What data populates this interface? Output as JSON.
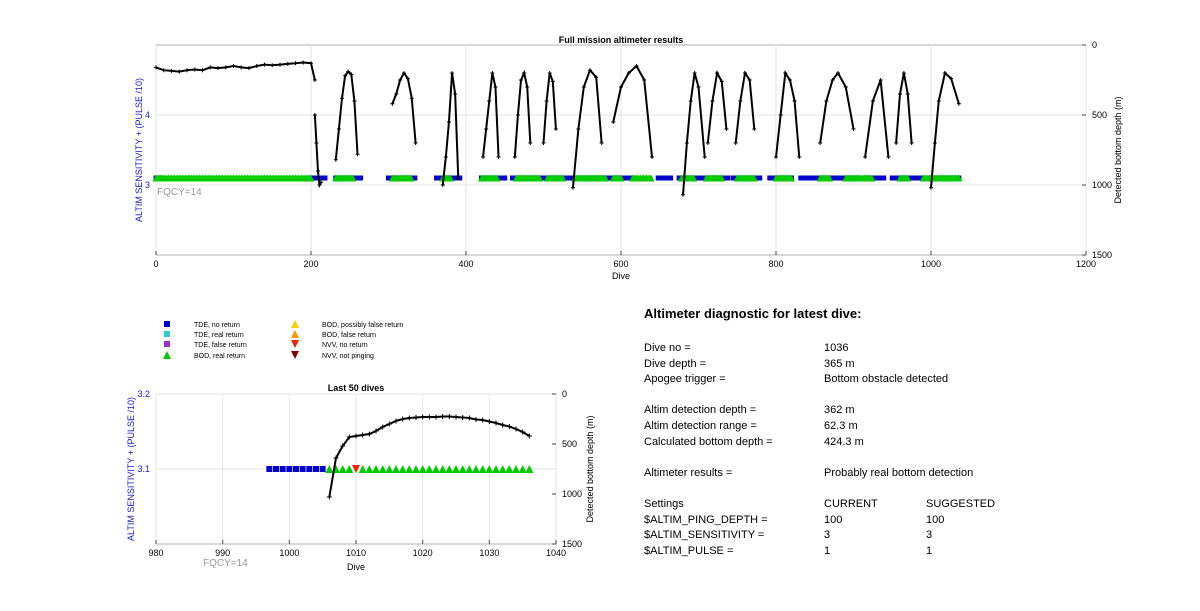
{
  "top_chart": {
    "title": "Full mission altimeter results",
    "xlabel": "Dive",
    "ylabel_left": "ALTIM SENSITIVITY + (PULSE /10)",
    "ylabel_right": "Detected bottom depth (m)",
    "fqcy_label": "FQCY=14",
    "x_ticks": [
      "0",
      "200",
      "400",
      "600",
      "800",
      "1000",
      "1200"
    ],
    "y_left_ticks": [
      "3",
      "4"
    ],
    "y_right_ticks": [
      "0",
      "500",
      "1000",
      "1500"
    ]
  },
  "bottom_chart": {
    "title": "Last 50 dives",
    "xlabel": "Dive",
    "ylabel_left": "ALTIM SENSITIVITY + (PULSE /10)",
    "ylabel_right": "Detected bottom depth (m)",
    "fqcy_label": "FQCY=14",
    "x_ticks": [
      "980",
      "990",
      "1000",
      "1010",
      "1020",
      "1030",
      "1040"
    ],
    "y_left_ticks": [
      "3.1",
      "3.2"
    ],
    "y_right_ticks": [
      "0",
      "500",
      "1000",
      "1500"
    ]
  },
  "legend": {
    "items": [
      {
        "label": "TDE, no return",
        "color": "#0000cc",
        "shape": "square"
      },
      {
        "label": "TDE, real return",
        "color": "#33cccc",
        "shape": "square"
      },
      {
        "label": "TDE, false return",
        "color": "#9933cc",
        "shape": "square"
      },
      {
        "label": "BOD, real return",
        "color": "#00cc00",
        "shape": "triangle-up"
      },
      {
        "label": "BOD, possibly false return",
        "color": "#ffcc00",
        "shape": "triangle-up"
      },
      {
        "label": "BOD, false return",
        "color": "#ff9900",
        "shape": "triangle-up"
      },
      {
        "label": "NVV, no return",
        "color": "#ee2200",
        "shape": "triangle-down"
      },
      {
        "label": "NVV, not pinging",
        "color": "#880000",
        "shape": "triangle-down"
      }
    ]
  },
  "diagnostic": {
    "title": "Altimeter diagnostic for latest dive:",
    "dive_no_label": "Dive no =",
    "dive_no": "1036",
    "dive_depth_label": "Dive depth =",
    "dive_depth": "365 m",
    "apogee_label": "Apogee trigger =",
    "apogee": "Bottom obstacle detected",
    "detect_depth_label": "Altim detection depth =",
    "detect_depth": "362 m",
    "detect_range_label": "Altim detection range =",
    "detect_range": "62.3 m",
    "calc_depth_label": "Calculated bottom depth =",
    "calc_depth": "424.3 m",
    "results_label": "Altimeter results =",
    "results": "Probably real bottom detection",
    "settings_label": "Settings",
    "current_label": "CURRENT",
    "suggested_label": "SUGGESTED",
    "ping_depth_label": "$ALTIM_PING_DEPTH =",
    "ping_depth_current": "100",
    "ping_depth_suggested": "100",
    "sensitivity_label": "$ALTIM_SENSITIVITY =",
    "sensitivity_current": "3",
    "sensitivity_suggested": "3",
    "pulse_label": "$ALTIM_PULSE =",
    "pulse_current": "1",
    "pulse_suggested": "1"
  },
  "chart_data": [
    {
      "type": "scatter",
      "title": "Full mission altimeter results",
      "xlabel": "Dive",
      "ylabel": "ALTIM SENSITIVITY + (PULSE /10)",
      "ylabel_right": "Detected bottom depth (m)",
      "xlim": [
        0,
        1200
      ],
      "ylim_left": [
        2,
        5
      ],
      "ylim_right": [
        1500,
        0
      ],
      "grid": true,
      "tde_no_return_dives": [
        [
          0,
          5
        ],
        [
          200,
          218
        ],
        [
          232,
          265
        ],
        [
          300,
          335
        ],
        [
          362,
          392
        ],
        [
          420,
          450
        ],
        [
          460,
          490
        ],
        [
          495,
          530
        ],
        [
          535,
          575
        ],
        [
          580,
          615
        ],
        [
          648,
          665
        ],
        [
          675,
          708
        ],
        [
          712,
          738
        ],
        [
          745,
          780
        ],
        [
          792,
          820
        ],
        [
          832,
          860
        ],
        [
          865,
          905
        ],
        [
          915,
          940
        ],
        [
          950,
          990
        ],
        [
          1000,
          1036
        ]
      ],
      "bod_real_return_ranges": [
        [
          0,
          200
        ],
        [
          232,
          255
        ],
        [
          305,
          330
        ],
        [
          370,
          380
        ],
        [
          420,
          440
        ],
        [
          465,
          495
        ],
        [
          505,
          525
        ],
        [
          540,
          580
        ],
        [
          590,
          600
        ],
        [
          615,
          640
        ],
        [
          678,
          695
        ],
        [
          710,
          730
        ],
        [
          750,
          772
        ],
        [
          800,
          820
        ],
        [
          857,
          870
        ],
        [
          890,
          925
        ],
        [
          960,
          970
        ],
        [
          990,
          1036
        ]
      ],
      "setting_value_left": 3.1,
      "depth_series": {
        "name": "Detected bottom depth",
        "segments": [
          {
            "x": [
              0,
              10,
              20,
              30,
              40,
              50,
              60,
              70,
              80,
              90,
              100,
              110,
              120,
              130,
              140,
              150,
              160,
              170,
              180,
              190,
              200,
              205
            ],
            "y": [
              160,
              180,
              185,
              190,
              180,
              175,
              180,
              160,
              165,
              160,
              150,
              160,
              165,
              150,
              140,
              145,
              140,
              135,
              130,
              125,
              130,
              250
            ]
          },
          {
            "x": [
              205,
              207,
              209,
              211,
              213
            ],
            "y": [
              500,
              700,
              900,
              1000,
              980
            ]
          },
          {
            "x": [
              232,
              236,
              240,
              244,
              248,
              252,
              256,
              260
            ],
            "y": [
              820,
              600,
              380,
              220,
              190,
              210,
              400,
              780
            ]
          },
          {
            "x": [
              305,
              310,
              315,
              320,
              325,
              330,
              335
            ],
            "y": [
              420,
              350,
              250,
              200,
              240,
              380,
              700
            ]
          },
          {
            "x": [
              370,
              374,
              378,
              382,
              386,
              390
            ],
            "y": [
              1000,
              800,
              550,
              200,
              350,
              950
            ]
          },
          {
            "x": [
              422,
              426,
              430,
              434,
              438,
              442
            ],
            "y": [
              800,
              600,
              400,
              200,
              300,
              800
            ]
          },
          {
            "x": [
              463,
              467,
              471,
              475,
              479,
              483
            ],
            "y": [
              800,
              500,
              250,
              200,
              300,
              700
            ]
          },
          {
            "x": [
              500,
              504,
              508,
              512,
              516
            ],
            "y": [
              700,
              400,
              200,
              260,
              600
            ]
          },
          {
            "x": [
              538,
              545,
              552,
              560,
              568,
              575
            ],
            "y": [
              1020,
              600,
              300,
              180,
              230,
              700
            ]
          },
          {
            "x": [
              590,
              600,
              610,
              620,
              630,
              640
            ],
            "y": [
              550,
              300,
              200,
              150,
              250,
              800
            ]
          },
          {
            "x": [
              680,
              685,
              690,
              695,
              700,
              708
            ],
            "y": [
              1070,
              700,
              400,
              200,
              300,
              800
            ]
          },
          {
            "x": [
              712,
              718,
              724,
              730,
              736
            ],
            "y": [
              700,
              400,
              200,
              260,
              600
            ]
          },
          {
            "x": [
              748,
              754,
              760,
              766,
              772
            ],
            "y": [
              700,
              400,
              200,
              250,
              600
            ]
          },
          {
            "x": [
              800,
              806,
              812,
              818,
              824,
              830
            ],
            "y": [
              800,
              500,
              200,
              250,
              400,
              800
            ]
          },
          {
            "x": [
              857,
              865,
              873,
              880,
              890,
              900
            ],
            "y": [
              700,
              400,
              250,
              200,
              300,
              600
            ]
          },
          {
            "x": [
              915,
              925,
              935,
              945
            ],
            "y": [
              800,
              400,
              250,
              800
            ]
          },
          {
            "x": [
              955,
              960,
              965,
              970,
              975
            ],
            "y": [
              700,
              350,
              200,
              350,
              700
            ]
          },
          {
            "x": [
              1000,
              1005,
              1010,
              1018,
              1026,
              1036
            ],
            "y": [
              1020,
              700,
              400,
              200,
              240,
              420
            ]
          }
        ]
      }
    },
    {
      "type": "scatter",
      "title": "Last 50 dives",
      "xlabel": "Dive",
      "ylabel": "ALTIM SENSITIVITY + (PULSE /10)",
      "ylabel_right": "Detected bottom depth (m)",
      "xlim": [
        980,
        1040
      ],
      "ylim_left": [
        3.0,
        3.2
      ],
      "ylim_right": [
        1500,
        0
      ],
      "grid": true,
      "tde_no_return_x": [
        997,
        998,
        999,
        1000,
        1001,
        1002,
        1003,
        1004,
        1005
      ],
      "bod_real_return_x": [
        1006,
        1007,
        1008,
        1009,
        1011,
        1012,
        1013,
        1014,
        1015,
        1016,
        1017,
        1018,
        1019,
        1020,
        1021,
        1022,
        1023,
        1024,
        1025,
        1026,
        1027,
        1028,
        1029,
        1030,
        1031,
        1032,
        1033,
        1034,
        1035,
        1036
      ],
      "nvv_no_return_x": [
        1010
      ],
      "setting_value_left": 3.1,
      "depth_series": {
        "name": "Detected bottom depth",
        "x": [
          1006,
          1007,
          1008,
          1009,
          1010,
          1011,
          1012,
          1013,
          1014,
          1015,
          1016,
          1017,
          1018,
          1019,
          1020,
          1021,
          1022,
          1023,
          1024,
          1025,
          1026,
          1027,
          1028,
          1029,
          1030,
          1031,
          1032,
          1033,
          1034,
          1035,
          1036
        ],
        "y": [
          1030,
          640,
          520,
          430,
          420,
          410,
          400,
          370,
          330,
          300,
          270,
          250,
          240,
          235,
          230,
          230,
          230,
          225,
          225,
          230,
          235,
          240,
          255,
          260,
          275,
          290,
          310,
          325,
          350,
          380,
          420
        ]
      }
    }
  ]
}
